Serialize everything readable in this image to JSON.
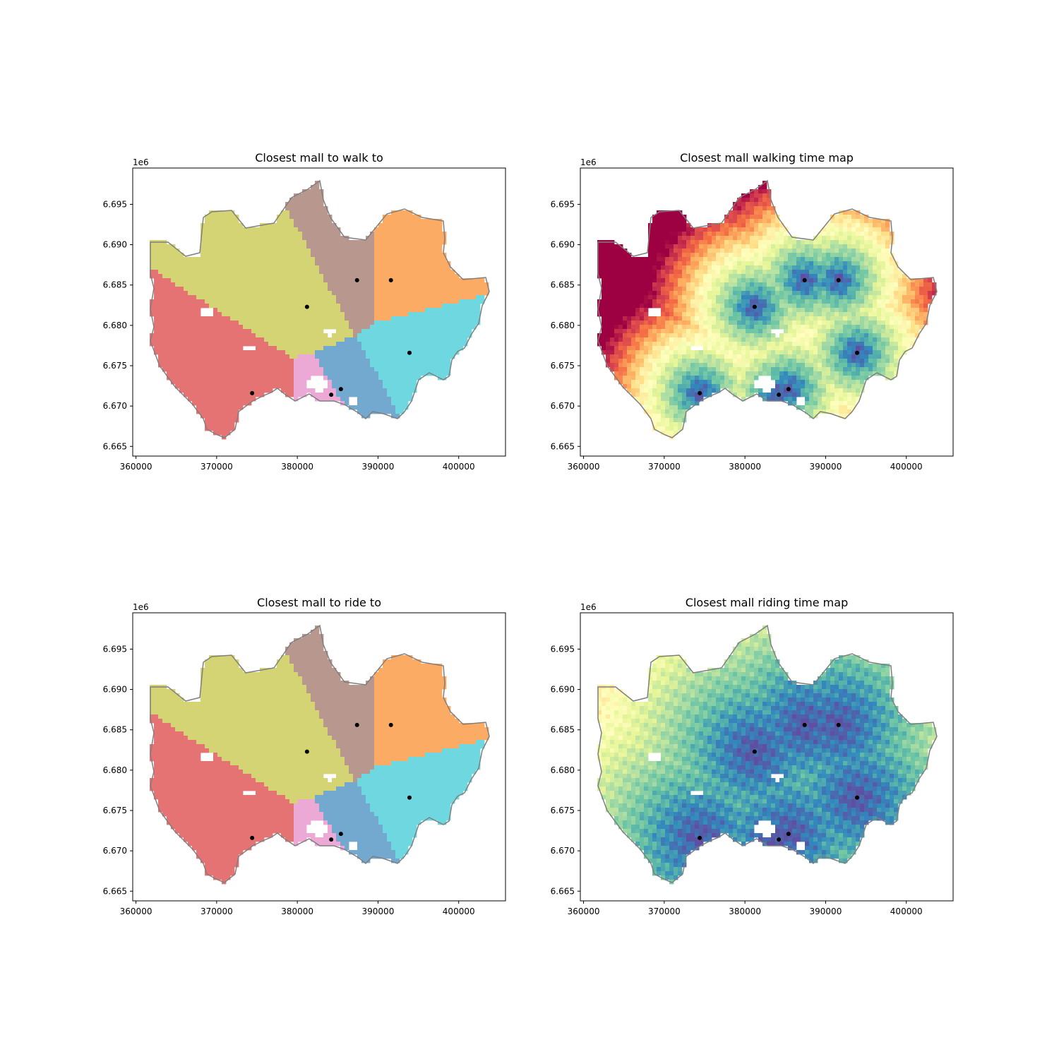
{
  "figure": {
    "panels": [
      {
        "id": "walk-regions",
        "title": "Closest mall to walk to",
        "kind": "regions",
        "outline_color": "#7f7f7f",
        "region_colors": [
          "#e57373",
          "#d4d474",
          "#eda9d6",
          "#73a9cf",
          "#b8978e",
          "#fbab63",
          "#6fd7df"
        ]
      },
      {
        "id": "walk-time",
        "title": "Closest mall walking time map",
        "kind": "time",
        "colormap": "Spectral_r",
        "outline_color": "#7f7f7f"
      },
      {
        "id": "ride-regions",
        "title": "Closest mall to ride to",
        "kind": "regions",
        "outline_color": "#7f7f7f",
        "region_colors": [
          "#e57373",
          "#d4d474",
          "#eda9d6",
          "#73a9cf",
          "#b8978e",
          "#fbab63",
          "#6fd7df"
        ]
      },
      {
        "id": "ride-time",
        "title": "Closest mall riding time map",
        "kind": "time",
        "colormap": "Spectral_r",
        "outline_color": "#7f7f7f"
      }
    ],
    "axes": {
      "x_ticks": [
        "360000",
        "370000",
        "380000",
        "390000",
        "400000"
      ],
      "y_ticks": [
        "6.695",
        "6.690",
        "6.685",
        "6.680",
        "6.675",
        "6.670",
        "6.665"
      ],
      "y_offset_label": "1e6",
      "xlim": [
        359600,
        405800
      ],
      "ylim": [
        6663800,
        6699500
      ]
    },
    "malls": [
      {
        "x": 374400,
        "y": 6671600
      },
      {
        "x": 381200,
        "y": 6682300
      },
      {
        "x": 384200,
        "y": 6671400
      },
      {
        "x": 385400,
        "y": 6672100
      },
      {
        "x": 387400,
        "y": 6685600
      },
      {
        "x": 391600,
        "y": 6685600
      },
      {
        "x": 393900,
        "y": 6676600
      }
    ]
  }
}
